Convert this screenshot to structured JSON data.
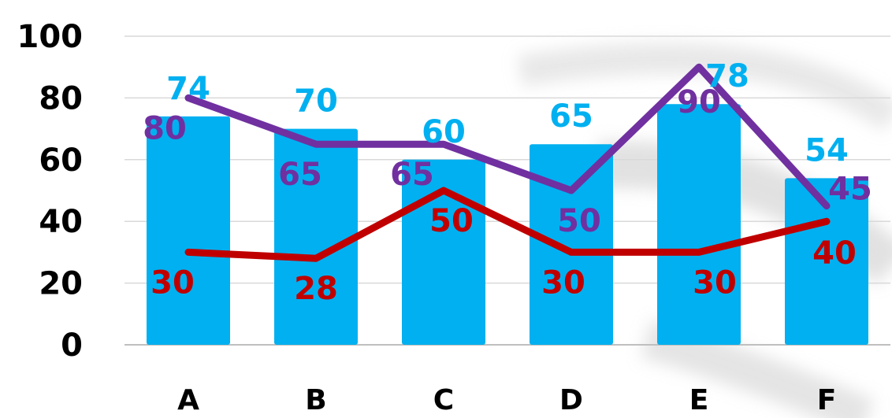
{
  "chart_data": {
    "type": "bar",
    "categories": [
      "A",
      "B",
      "C",
      "D",
      "E",
      "F"
    ],
    "ylim": [
      0,
      100
    ],
    "yticks": [
      0,
      20,
      40,
      60,
      80,
      100
    ],
    "grid": true,
    "legend": "none",
    "title": "",
    "xlabel": "",
    "ylabel": "",
    "series": [
      {
        "kind": "bar",
        "values": [
          74,
          70,
          60,
          65,
          78,
          54
        ],
        "color": "#00b0f0"
      },
      {
        "kind": "line",
        "values": [
          80,
          65,
          65,
          50,
          90,
          45
        ],
        "color": "#7030a0"
      },
      {
        "kind": "line",
        "values": [
          30,
          28,
          50,
          30,
          30,
          40
        ],
        "color": "#c00000"
      }
    ]
  }
}
